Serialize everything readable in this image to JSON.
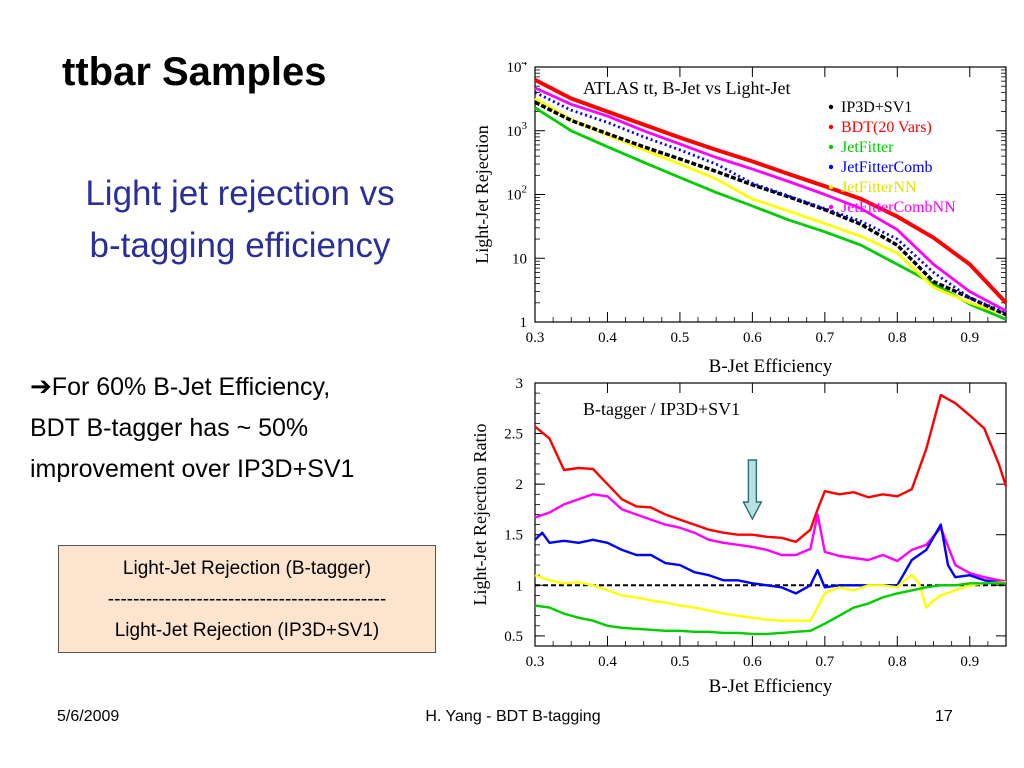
{
  "slide": {
    "title": "ttbar Samples",
    "subtitle_line1": "Light jet rejection vs",
    "subtitle_line2": "b-tagging efficiency",
    "note_arrow": "➔",
    "note_line1": "For 60% B-Jet Efficiency,",
    "note_line2": "BDT B-tagger has ~ 50%",
    "note_line3": "improvement over IP3D+SV1",
    "formula_numerator": "Light-Jet Rejection (B-tagger)",
    "formula_bar": "--------------------------------------------",
    "formula_denominator": "Light-Jet Rejection (IP3D+SV1)",
    "footer_date": "5/6/2009",
    "footer_center": "H. Yang - BDT B-tagging",
    "footer_page": "17"
  },
  "chart_data": [
    {
      "type": "line",
      "title": "ATLAS tt, B-Jet vs Light-Jet",
      "xlabel": "B-Jet Efficiency",
      "ylabel": "Light-Jet Rejection",
      "y_scale": "log",
      "xlim": [
        0.3,
        0.95
      ],
      "ylim": [
        1,
        10000
      ],
      "x_ticks": [
        "0.3",
        "0.4",
        "0.5",
        "0.6",
        "0.7",
        "0.8",
        "0.9"
      ],
      "x_tick_values": [
        0.3,
        0.4,
        0.5,
        0.6,
        0.7,
        0.8,
        0.9
      ],
      "y_ticks": [
        {
          "value": 1,
          "base": "1",
          "exp": ""
        },
        {
          "value": 10,
          "base": "10",
          "exp": ""
        },
        {
          "value": 100,
          "base": "10",
          "exp": "2"
        },
        {
          "value": 1000,
          "base": "10",
          "exp": "3"
        },
        {
          "value": 10000,
          "base": "10",
          "exp": "4"
        }
      ],
      "legend_position": "top-right",
      "x": [
        0.3,
        0.35,
        0.4,
        0.45,
        0.5,
        0.55,
        0.6,
        0.65,
        0.7,
        0.75,
        0.8,
        0.85,
        0.9,
        0.95
      ],
      "series": [
        {
          "name": "IP3D+SV1",
          "color": "#000000",
          "values": [
            2800,
            1450,
            900,
            560,
            360,
            230,
            142,
            92,
            58,
            34,
            16,
            4.3,
            2.4,
            1.3
          ]
        },
        {
          "name": "BDT(20 Vars)",
          "color": "#ff0000",
          "values": [
            6300,
            3200,
            2000,
            1250,
            780,
            500,
            330,
            210,
            135,
            85,
            45,
            21,
            8,
            2
          ]
        },
        {
          "name": "JetFitter",
          "color": "#00cc00",
          "values": [
            2300,
            1000,
            560,
            320,
            185,
            108,
            66,
            40,
            26,
            16,
            8,
            4,
            1.9,
            1.1
          ]
        },
        {
          "name": "JetFitterComb",
          "color": "#0000ff",
          "values": [
            4000,
            2100,
            1350,
            800,
            500,
            300,
            150,
            95,
            60,
            38,
            20,
            6,
            2.4,
            1.4
          ]
        },
        {
          "name": "JetFitterNN",
          "color": "#ffff00",
          "values": [
            3200,
            1500,
            850,
            500,
            300,
            175,
            85,
            55,
            35,
            22,
            12,
            3.5,
            2,
            1.3
          ]
        },
        {
          "name": "JetFitterCombNN",
          "color": "#ff00ff",
          "values": [
            4700,
            2600,
            1700,
            1000,
            620,
            380,
            250,
            160,
            100,
            60,
            28,
            8,
            3,
            1.5
          ]
        }
      ]
    },
    {
      "type": "line",
      "title": "B-tagger / IP3D+SV1",
      "xlabel": "B-Jet Efficiency",
      "ylabel": "Light-Jet Rejection Ratio",
      "xlim": [
        0.3,
        0.95
      ],
      "ylim": [
        0.4,
        3
      ],
      "x_ticks": [
        "0.3",
        "0.4",
        "0.5",
        "0.6",
        "0.7",
        "0.8",
        "0.9"
      ],
      "x_tick_values": [
        0.3,
        0.4,
        0.5,
        0.6,
        0.7,
        0.8,
        0.9
      ],
      "y_ticks": [
        "0.5",
        "1",
        "1.5",
        "2",
        "2.5",
        "3"
      ],
      "y_tick_values": [
        0.5,
        1,
        1.5,
        2,
        2.5,
        3
      ],
      "reference_line": 1.0,
      "marker_x": 0.6,
      "series": [
        {
          "name": "BDT(20 Vars)",
          "color": "#ff0000",
          "x": [
            0.3,
            0.32,
            0.34,
            0.36,
            0.38,
            0.4,
            0.42,
            0.44,
            0.46,
            0.48,
            0.5,
            0.52,
            0.54,
            0.56,
            0.58,
            0.6,
            0.62,
            0.64,
            0.66,
            0.68,
            0.69,
            0.7,
            0.72,
            0.74,
            0.76,
            0.78,
            0.8,
            0.82,
            0.84,
            0.86,
            0.88,
            0.9,
            0.92,
            0.94,
            0.95
          ],
          "values": [
            2.57,
            2.45,
            2.14,
            2.16,
            2.15,
            2.0,
            1.85,
            1.78,
            1.77,
            1.7,
            1.65,
            1.6,
            1.55,
            1.52,
            1.5,
            1.5,
            1.48,
            1.47,
            1.43,
            1.55,
            1.75,
            1.93,
            1.9,
            1.92,
            1.87,
            1.9,
            1.88,
            1.95,
            2.35,
            2.88,
            2.8,
            2.68,
            2.55,
            2.2,
            1.98
          ]
        },
        {
          "name": "JetFitterCombNN",
          "color": "#ff00ff",
          "x": [
            0.3,
            0.32,
            0.34,
            0.36,
            0.38,
            0.4,
            0.42,
            0.44,
            0.46,
            0.48,
            0.5,
            0.52,
            0.54,
            0.56,
            0.58,
            0.6,
            0.62,
            0.64,
            0.66,
            0.68,
            0.69,
            0.7,
            0.72,
            0.74,
            0.76,
            0.78,
            0.8,
            0.82,
            0.84,
            0.86,
            0.88,
            0.9,
            0.92,
            0.94,
            0.95
          ],
          "values": [
            1.67,
            1.72,
            1.8,
            1.85,
            1.9,
            1.88,
            1.75,
            1.7,
            1.65,
            1.6,
            1.57,
            1.52,
            1.45,
            1.42,
            1.4,
            1.38,
            1.35,
            1.3,
            1.3,
            1.36,
            1.7,
            1.33,
            1.29,
            1.27,
            1.25,
            1.3,
            1.24,
            1.35,
            1.4,
            1.57,
            1.2,
            1.12,
            1.08,
            1.05,
            1.04
          ]
        },
        {
          "name": "JetFitterComb",
          "color": "#0000ff",
          "x": [
            0.3,
            0.31,
            0.32,
            0.34,
            0.36,
            0.38,
            0.4,
            0.42,
            0.44,
            0.46,
            0.48,
            0.5,
            0.52,
            0.54,
            0.56,
            0.58,
            0.6,
            0.62,
            0.64,
            0.66,
            0.68,
            0.69,
            0.7,
            0.72,
            0.74,
            0.76,
            0.78,
            0.8,
            0.82,
            0.84,
            0.86,
            0.87,
            0.88,
            0.9,
            0.92,
            0.94,
            0.95
          ],
          "values": [
            1.45,
            1.52,
            1.42,
            1.44,
            1.42,
            1.45,
            1.42,
            1.35,
            1.3,
            1.3,
            1.22,
            1.2,
            1.13,
            1.1,
            1.05,
            1.05,
            1.02,
            1.0,
            0.98,
            0.92,
            1.0,
            1.15,
            0.98,
            1.0,
            1.0,
            1.0,
            1.0,
            1.0,
            1.25,
            1.35,
            1.6,
            1.2,
            1.08,
            1.1,
            1.05,
            1.03,
            1.02
          ]
        },
        {
          "name": "JetFitterNN",
          "color": "#ffff00",
          "x": [
            0.3,
            0.32,
            0.34,
            0.36,
            0.38,
            0.4,
            0.42,
            0.44,
            0.46,
            0.48,
            0.5,
            0.52,
            0.54,
            0.56,
            0.58,
            0.6,
            0.62,
            0.64,
            0.66,
            0.68,
            0.7,
            0.72,
            0.74,
            0.76,
            0.78,
            0.8,
            0.81,
            0.82,
            0.83,
            0.84,
            0.85,
            0.86,
            0.88,
            0.9,
            0.92,
            0.95
          ],
          "values": [
            1.1,
            1.05,
            1.02,
            1.03,
            1.0,
            0.95,
            0.9,
            0.88,
            0.85,
            0.83,
            0.8,
            0.78,
            0.75,
            0.72,
            0.7,
            0.68,
            0.66,
            0.65,
            0.65,
            0.65,
            0.92,
            0.98,
            0.95,
            1.0,
            1.0,
            0.98,
            1.05,
            1.1,
            1.02,
            0.78,
            0.85,
            0.9,
            0.95,
            1.0,
            1.02,
            1.03
          ]
        },
        {
          "name": "JetFitter",
          "color": "#00cc00",
          "x": [
            0.3,
            0.32,
            0.34,
            0.36,
            0.38,
            0.4,
            0.42,
            0.44,
            0.46,
            0.48,
            0.5,
            0.52,
            0.54,
            0.56,
            0.58,
            0.6,
            0.62,
            0.64,
            0.66,
            0.68,
            0.7,
            0.72,
            0.74,
            0.76,
            0.78,
            0.8,
            0.82,
            0.84,
            0.86,
            0.88,
            0.9,
            0.92,
            0.95
          ],
          "values": [
            0.8,
            0.78,
            0.72,
            0.68,
            0.65,
            0.6,
            0.58,
            0.57,
            0.56,
            0.55,
            0.55,
            0.54,
            0.54,
            0.53,
            0.53,
            0.52,
            0.52,
            0.53,
            0.54,
            0.55,
            0.62,
            0.7,
            0.78,
            0.82,
            0.88,
            0.92,
            0.95,
            0.98,
            1.0,
            1.0,
            1.02,
            1.02,
            1.02
          ]
        }
      ]
    }
  ]
}
